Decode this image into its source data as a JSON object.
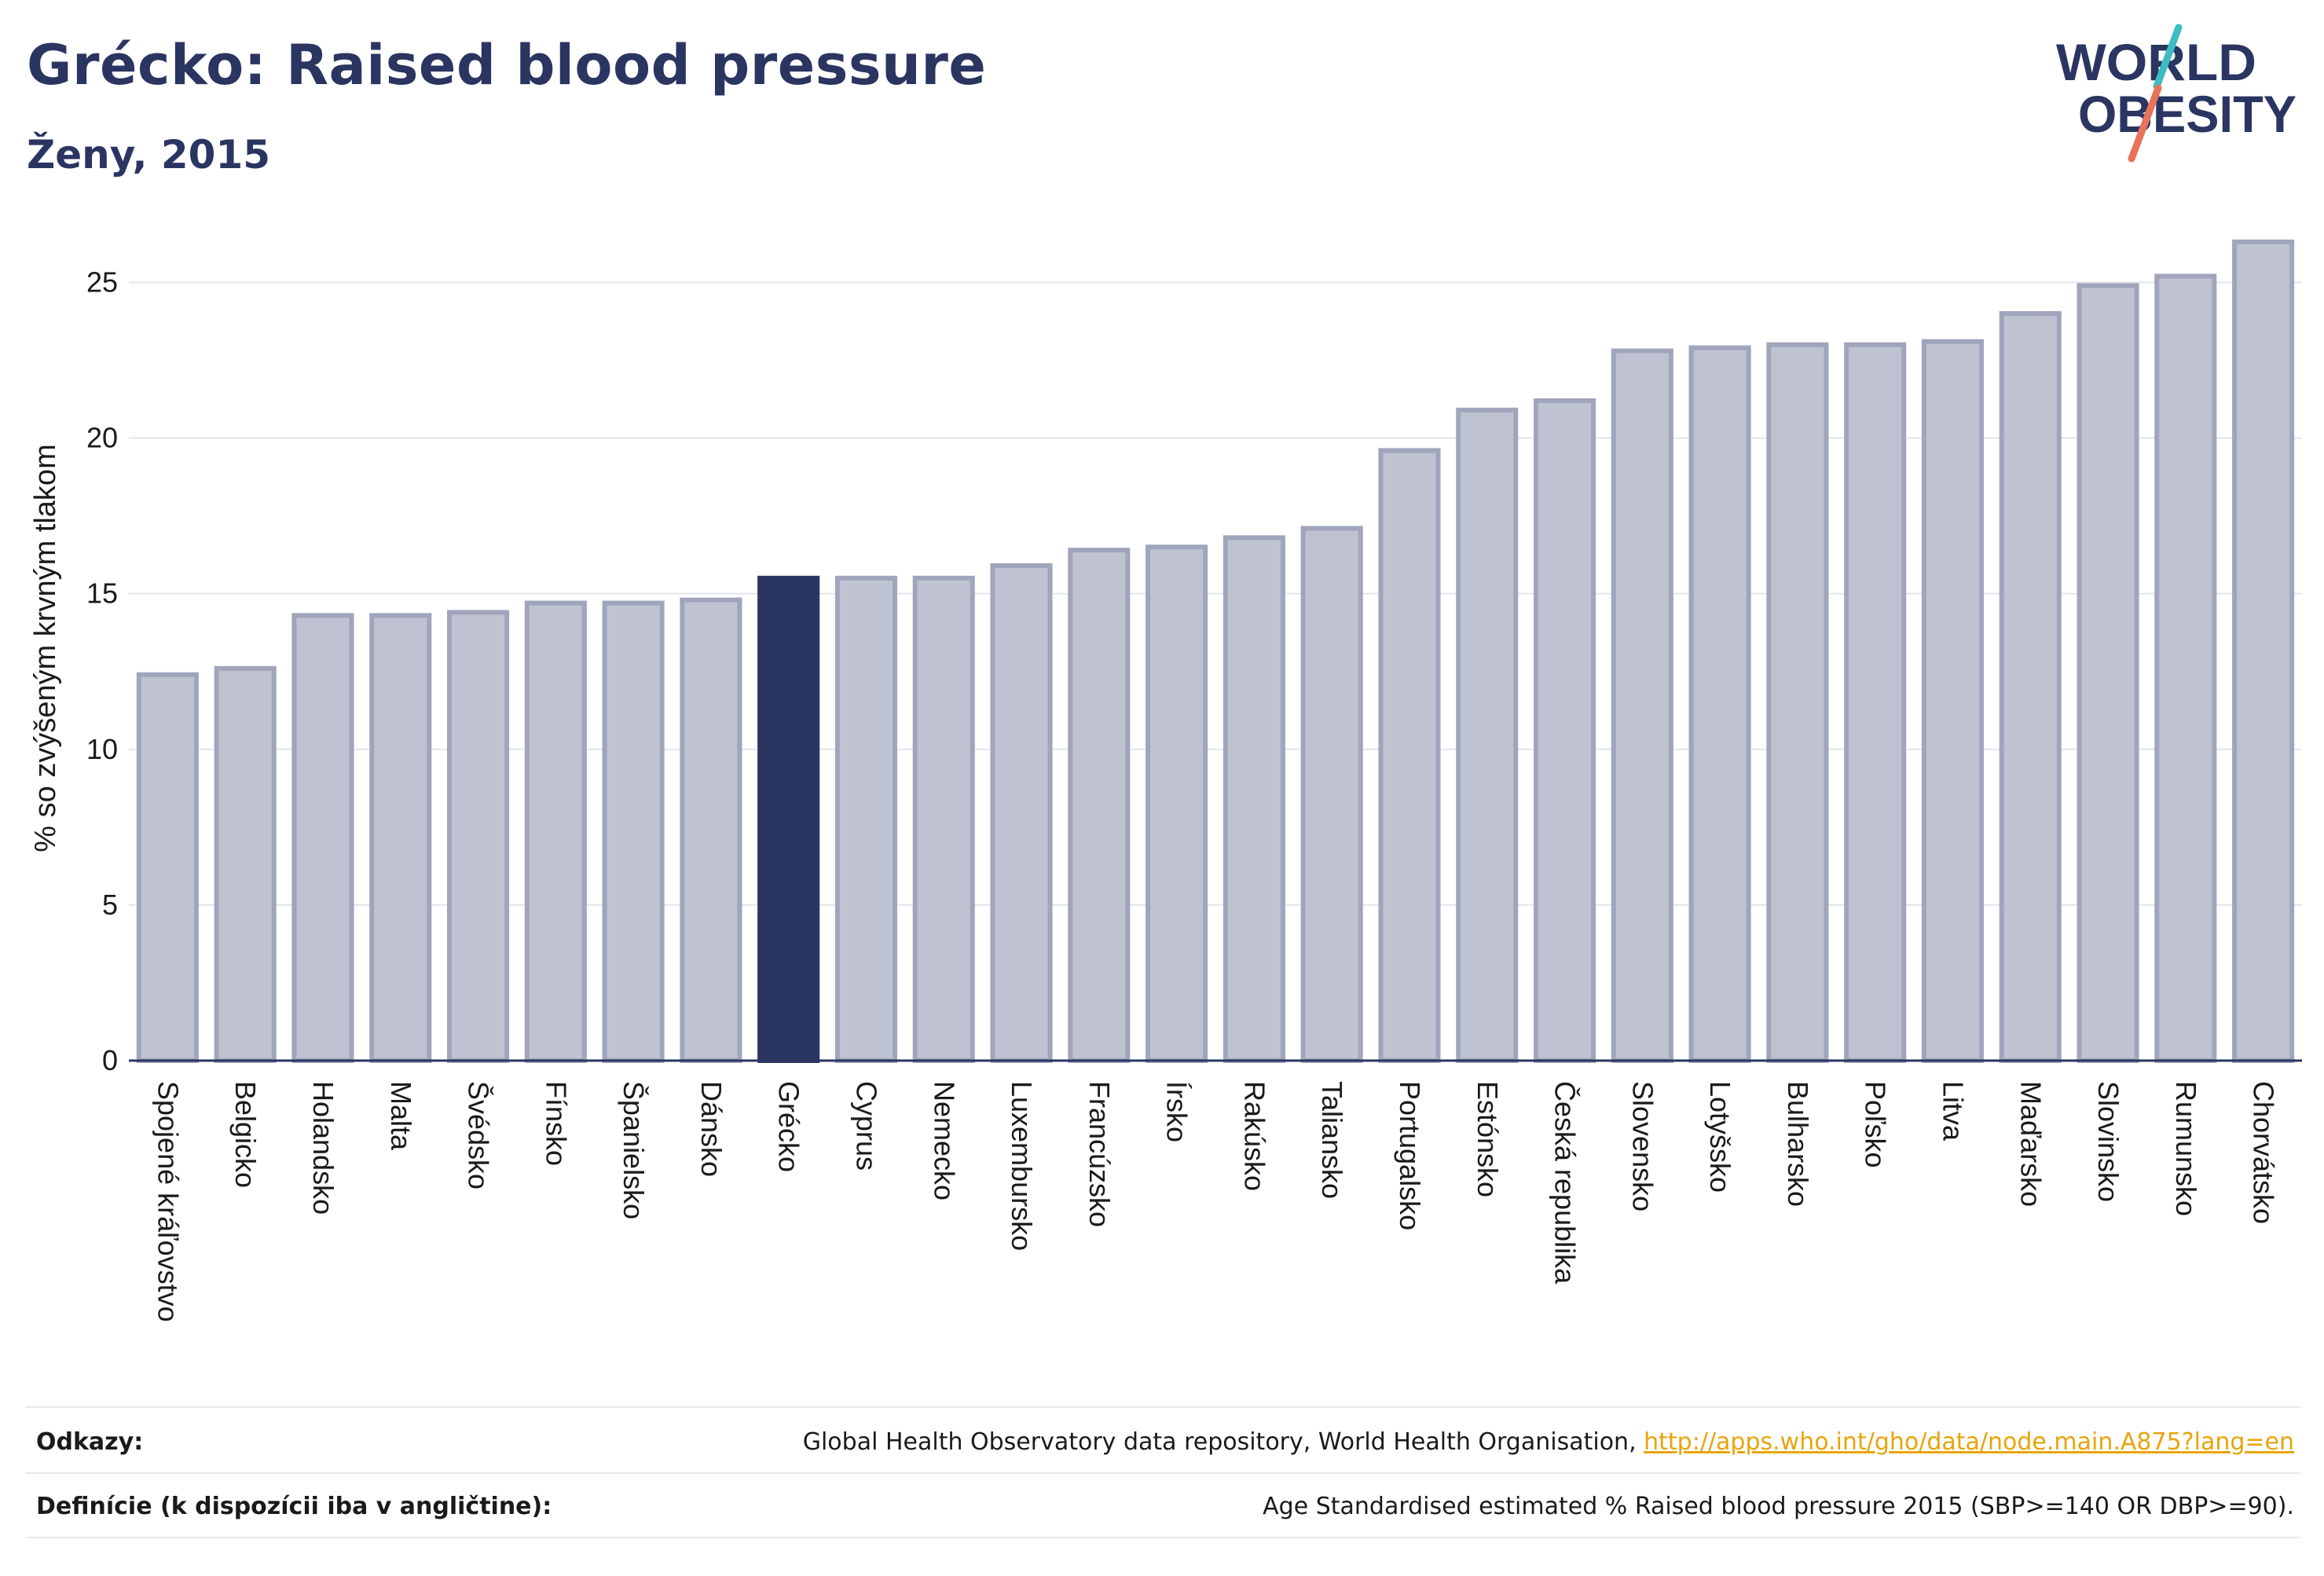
{
  "header": {
    "title": "Grécko: Raised blood pressure",
    "subtitle": "Ženy, 2015"
  },
  "logo": {
    "line1": "WORLD",
    "line2": "OBESITY",
    "accent_colors": [
      "#e8735a",
      "#3dbcc4"
    ]
  },
  "chart_data": {
    "type": "bar",
    "title": "Grécko: Raised blood pressure",
    "subtitle": "Ženy, 2015",
    "ylabel": "% so zvýšeným krvným tlakom",
    "xlabel": "",
    "ylim": [
      0,
      26.5
    ],
    "yticks": [
      0,
      5,
      10,
      15,
      20,
      25
    ],
    "grid": true,
    "highlight": "Grécko",
    "colors": {
      "bar": "#bfc2d0",
      "bar_edge": "#a0a5bc",
      "highlight": "#2b3561"
    },
    "categories": [
      "Spojené kráľovstvo",
      "Belgicko",
      "Holandsko",
      "Malta",
      "Švédsko",
      "Fínsko",
      "Španielsko",
      "Dánsko",
      "Grécko",
      "Cyprus",
      "Nemecko",
      "Luxembursko",
      "Francúzsko",
      "Írsko",
      "Rakúsko",
      "Taliansko",
      "Portugalsko",
      "Estónsko",
      "Česká republika",
      "Slovensko",
      "Lotyšsko",
      "Bulharsko",
      "Poľsko",
      "Litva",
      "Maďarsko",
      "Slovinsko",
      "Rumunsko",
      "Chorvátsko"
    ],
    "values": [
      12.4,
      12.6,
      14.3,
      14.3,
      14.4,
      14.7,
      14.7,
      14.8,
      15.5,
      15.5,
      15.5,
      15.9,
      16.4,
      16.5,
      16.8,
      17.1,
      19.6,
      20.9,
      21.2,
      22.8,
      22.9,
      23.0,
      23.0,
      23.1,
      24.0,
      24.9,
      25.2,
      26.3
    ]
  },
  "footer": {
    "sources_label": "Odkazy:",
    "sources_text": "Global Health Observatory data repository, World Health Organisation, ",
    "sources_link": "http://apps.who.int/gho/data/node.main.A875?lang=en",
    "definition_label": "Definície (k dispozícii iba v angličtine):",
    "definition_text": "Age Standardised estimated % Raised blood pressure 2015 (SBP>=140 OR DBP>=90)."
  }
}
